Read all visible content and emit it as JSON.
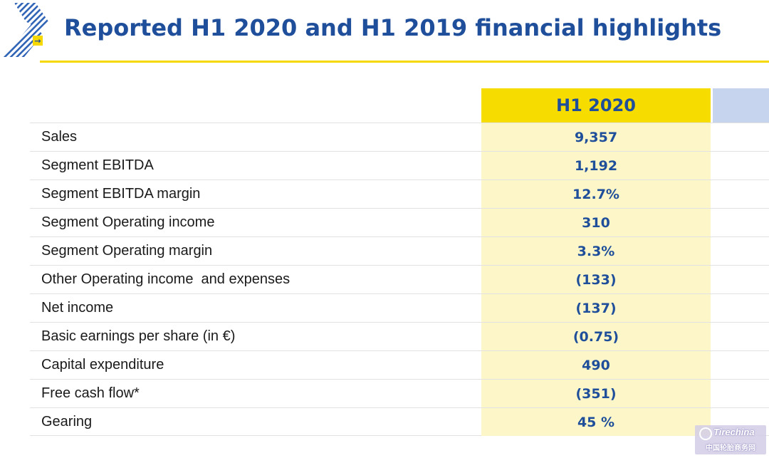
{
  "header": {
    "title": "Reported H1 2020 and H1 2019 financial highlights"
  },
  "table": {
    "column_h1_2020": "H1 2020",
    "rows": [
      {
        "label": "Sales",
        "value": "9,357"
      },
      {
        "label": "Segment EBITDA",
        "value": "1,192"
      },
      {
        "label": "Segment EBITDA margin",
        "value": "12.7%"
      },
      {
        "label": "Segment Operating income",
        "value": "310"
      },
      {
        "label": "Segment Operating margin",
        "value": "3.3%"
      },
      {
        "label": "Other Operating income  and expenses",
        "value": "(133)"
      },
      {
        "label": "Net income",
        "value": "(137)"
      },
      {
        "label": "Basic earnings per share (in €)",
        "value": "(0.75)"
      },
      {
        "label": "Capital expenditure",
        "value": "490"
      },
      {
        "label": "Free cash flow*",
        "value": "(351)"
      },
      {
        "label": "Gearing",
        "value": "45 %"
      }
    ]
  },
  "watermark": {
    "brand": "Tirechina",
    "subtitle": "中国轮胎商务网"
  },
  "colors": {
    "brand_blue": "#1f4e9a",
    "highlight_yellow": "#f7dc00",
    "value_cell": "#fdf6c8",
    "h1_2019_header": "#c6d4ee"
  }
}
